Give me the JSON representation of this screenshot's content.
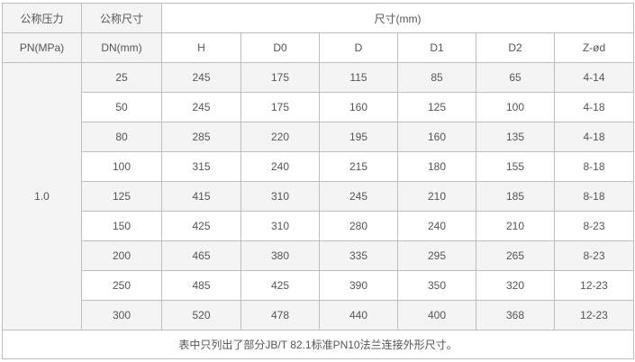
{
  "header": {
    "pressure_label": "公称压力",
    "pressure_unit": "PN(MPa)",
    "size_label": "公称尺寸",
    "size_unit": "DN(mm)",
    "dimensions_label": "尺寸(mm)",
    "columns": [
      "H",
      "D0",
      "D",
      "D1",
      "D2",
      "Z-ød"
    ]
  },
  "pressure_value": "1.0",
  "rows": [
    {
      "dn": "25",
      "values": [
        "245",
        "175",
        "115",
        "85",
        "65",
        "4-14"
      ]
    },
    {
      "dn": "50",
      "values": [
        "245",
        "175",
        "160",
        "125",
        "100",
        "4-18"
      ]
    },
    {
      "dn": "80",
      "values": [
        "285",
        "220",
        "195",
        "160",
        "135",
        "4-18"
      ]
    },
    {
      "dn": "100",
      "values": [
        "315",
        "240",
        "215",
        "180",
        "155",
        "8-18"
      ]
    },
    {
      "dn": "125",
      "values": [
        "415",
        "310",
        "245",
        "210",
        "185",
        "8-18"
      ]
    },
    {
      "dn": "150",
      "values": [
        "425",
        "310",
        "280",
        "240",
        "210",
        "8-23"
      ]
    },
    {
      "dn": "200",
      "values": [
        "465",
        "380",
        "335",
        "295",
        "265",
        "8-23"
      ]
    },
    {
      "dn": "250",
      "values": [
        "485",
        "425",
        "390",
        "350",
        "320",
        "12-23"
      ]
    },
    {
      "dn": "300",
      "values": [
        "520",
        "478",
        "440",
        "400",
        "368",
        "12-23"
      ]
    }
  ],
  "footnote": "表中只列出了部分JB/T 82.1标准PN10法兰连接外形尺寸。"
}
